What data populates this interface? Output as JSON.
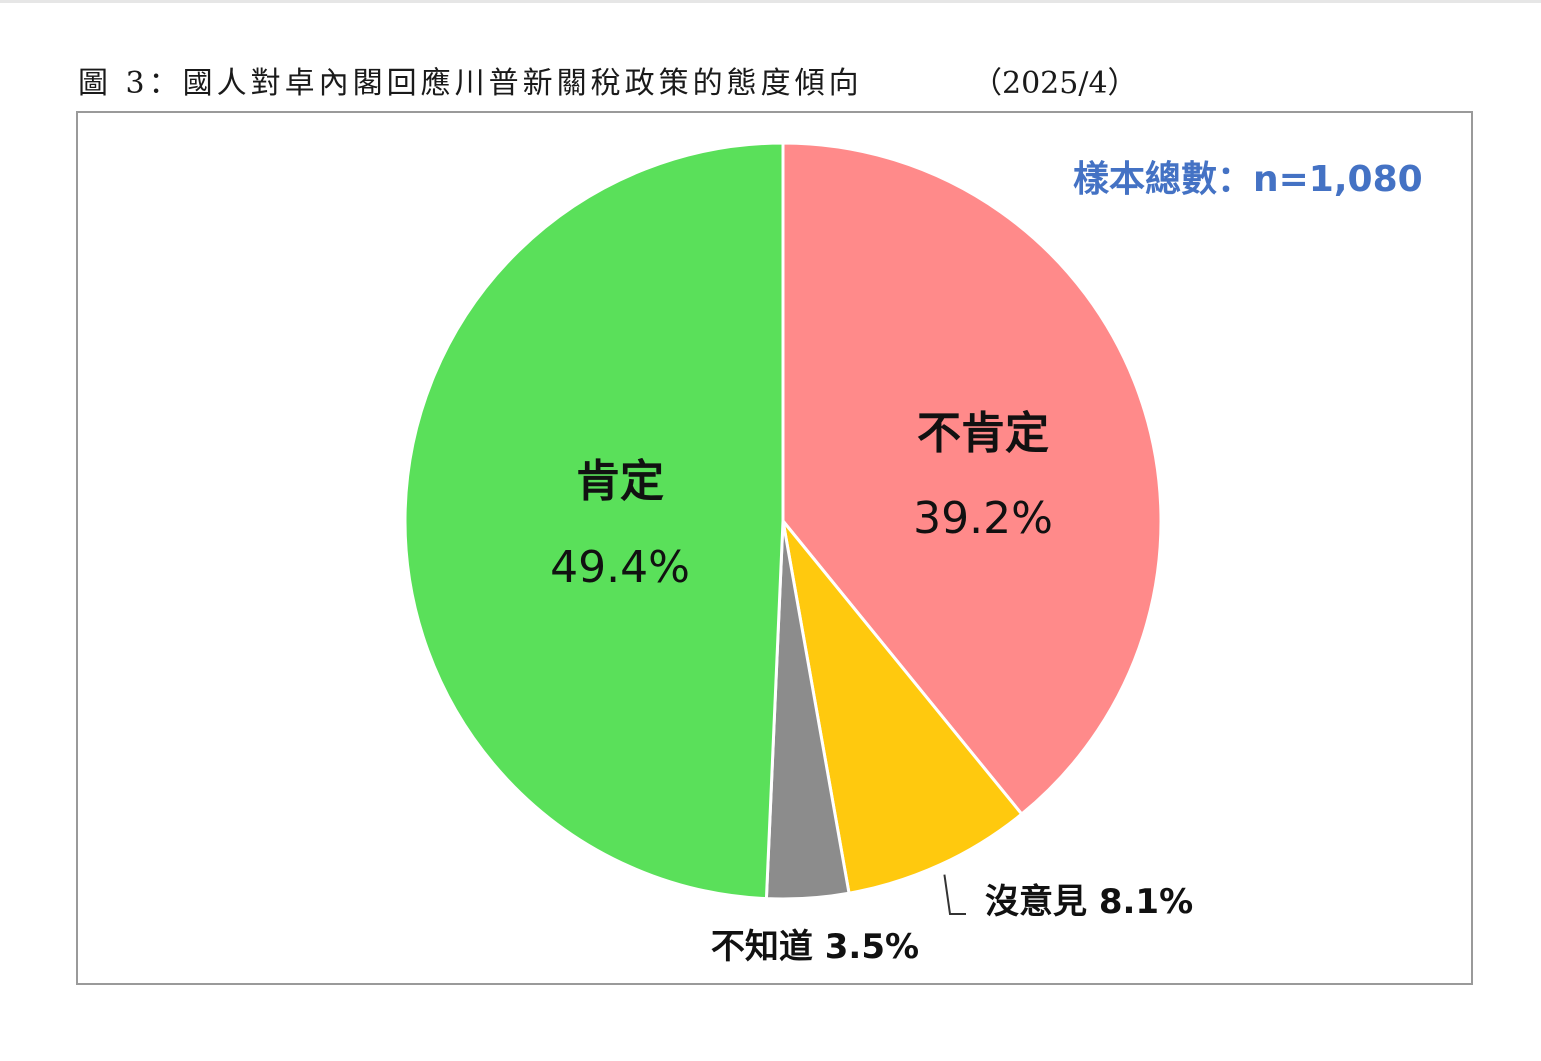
{
  "figure": {
    "title": "圖 3：國人對卓內閣回應川普新關稅政策的態度傾向",
    "date": "（2025/4）",
    "sample_note": "樣本總數：n=1,080"
  },
  "chart_data": {
    "type": "pie",
    "title": "圖 3：國人對卓內閣回應川普新關稅政策的態度傾向",
    "subtitle": "（2025/4）",
    "annotation": "樣本總數：n=1,080",
    "start": "12 o'clock, clockwise",
    "slices": [
      {
        "label": "不肯定",
        "value": 39.2,
        "value_text": "39.2%",
        "color": "#ff8a8a",
        "label_placement": "inside"
      },
      {
        "label": "沒意見",
        "value": 8.1,
        "value_text": "8.1%",
        "color": "#ffc90e",
        "label_placement": "outside-leader"
      },
      {
        "label": "不知道",
        "value": 3.5,
        "value_text": "3.5%",
        "color": "#8c8c8c",
        "label_placement": "outside"
      },
      {
        "label": "肯定",
        "value": 49.4,
        "value_text": "49.4%",
        "color": "#5ae05a",
        "label_placement": "inside"
      }
    ],
    "legend": "none"
  }
}
